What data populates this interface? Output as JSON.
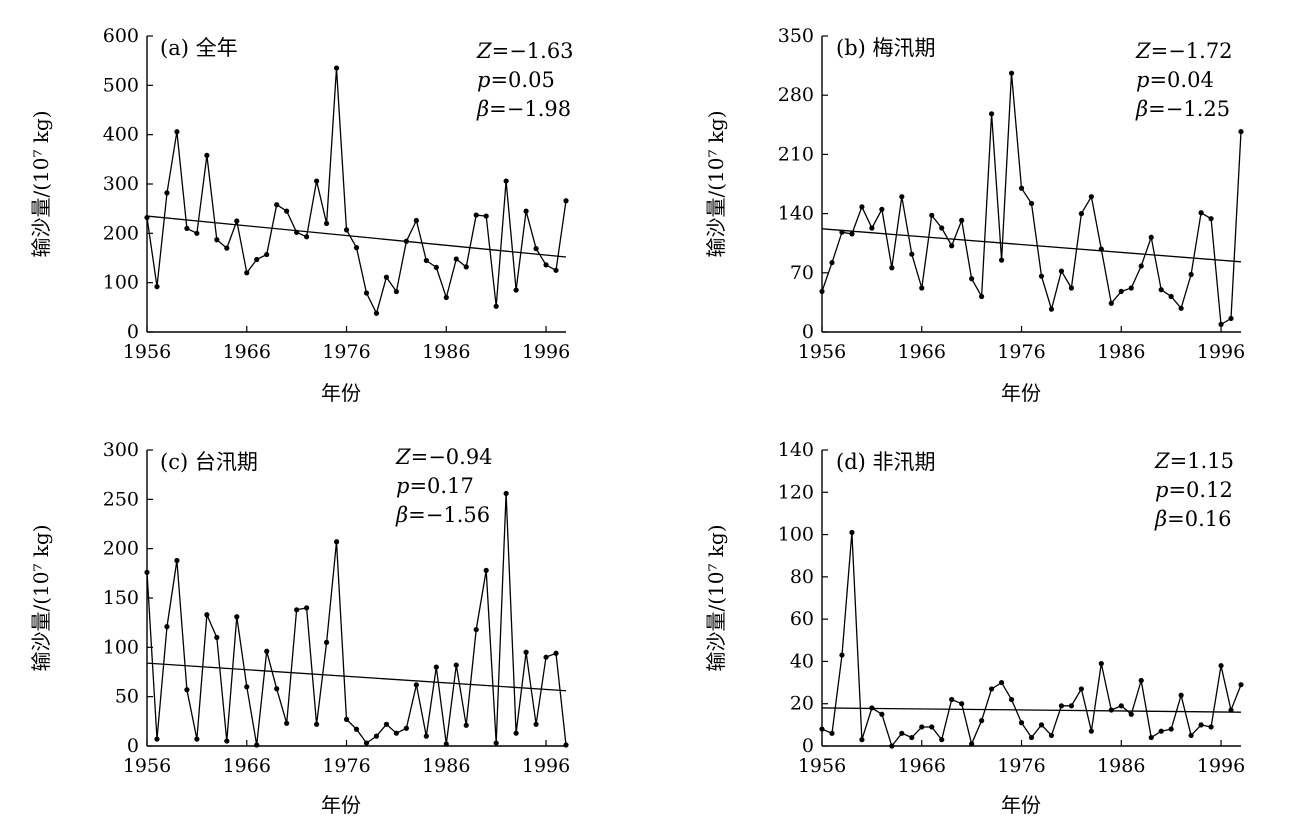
{
  "chart_data": [
    {
      "type": "line",
      "panel_label": "(a) 全年",
      "xlabel": "年份",
      "ylabel": "输沙量/(10⁷ kg)",
      "xlim": [
        1956,
        1998
      ],
      "xticks": [
        1956,
        1966,
        1976,
        1986,
        1996
      ],
      "ylim": [
        0,
        600
      ],
      "yticks": [
        0,
        100,
        200,
        300,
        400,
        500,
        600
      ],
      "stats": {
        "Z": "−1.63",
        "p": "0.05",
        "beta": "−1.98"
      },
      "series": [
        {
          "x": [
            1956,
            1957,
            1958,
            1959,
            1960,
            1961,
            1962,
            1963,
            1964,
            1965,
            1966,
            1967,
            1968,
            1969,
            1970,
            1971,
            1972,
            1973,
            1974,
            1975,
            1976,
            1977,
            1978,
            1979,
            1980,
            1981,
            1982,
            1983,
            1984,
            1985,
            1986,
            1987,
            1988,
            1989,
            1990,
            1991,
            1992,
            1993,
            1994,
            1995,
            1996,
            1997,
            1998
          ],
          "values": [
            232,
            92,
            282,
            406,
            210,
            200,
            358,
            187,
            170,
            225,
            120,
            147,
            157,
            258,
            245,
            202,
            193,
            306,
            220,
            535,
            207,
            171,
            79,
            38,
            111,
            82,
            184,
            226,
            145,
            131,
            70,
            148,
            132,
            237,
            235,
            52,
            306,
            85,
            245,
            169,
            136,
            125,
            266
          ]
        }
      ],
      "trend": {
        "x": [
          1956,
          1998
        ],
        "y": [
          235,
          152
        ]
      }
    },
    {
      "type": "line",
      "panel_label": "(b) 梅汛期",
      "xlabel": "年份",
      "ylabel": "输沙量/(10⁷ kg)",
      "xlim": [
        1956,
        1998
      ],
      "xticks": [
        1956,
        1966,
        1976,
        1986,
        1996
      ],
      "ylim": [
        0,
        350
      ],
      "yticks": [
        0,
        70,
        140,
        210,
        280,
        350
      ],
      "stats": {
        "Z": "−1.72",
        "p": "0.04",
        "beta": "−1.25"
      },
      "series": [
        {
          "x": [
            1956,
            1957,
            1958,
            1959,
            1960,
            1961,
            1962,
            1963,
            1964,
            1965,
            1966,
            1967,
            1968,
            1969,
            1970,
            1971,
            1972,
            1973,
            1974,
            1975,
            1976,
            1977,
            1978,
            1979,
            1980,
            1981,
            1982,
            1983,
            1984,
            1985,
            1986,
            1987,
            1988,
            1989,
            1990,
            1991,
            1992,
            1993,
            1994,
            1995,
            1996,
            1997,
            1998
          ],
          "values": [
            48,
            82,
            118,
            116,
            148,
            123,
            145,
            76,
            160,
            92,
            52,
            138,
            123,
            102,
            132,
            63,
            42,
            258,
            85,
            306,
            170,
            152,
            66,
            27,
            72,
            52,
            140,
            160,
            98,
            34,
            48,
            52,
            78,
            112,
            50,
            42,
            28,
            68,
            141,
            134,
            9,
            16,
            237
          ]
        }
      ],
      "trend": {
        "x": [
          1956,
          1998
        ],
        "y": [
          122,
          83
        ]
      }
    },
    {
      "type": "line",
      "panel_label": "(c) 台汛期",
      "xlabel": "年份",
      "ylabel": "输沙量/(10⁷ kg)",
      "xlim": [
        1956,
        1998
      ],
      "xticks": [
        1956,
        1966,
        1976,
        1986,
        1996
      ],
      "ylim": [
        0,
        300
      ],
      "yticks": [
        0,
        50,
        100,
        150,
        200,
        250,
        300
      ],
      "stats": {
        "Z": "−0.94",
        "p": "0.17",
        "beta": "−1.56"
      },
      "series": [
        {
          "x": [
            1956,
            1957,
            1958,
            1959,
            1960,
            1961,
            1962,
            1963,
            1964,
            1965,
            1966,
            1967,
            1968,
            1969,
            1970,
            1971,
            1972,
            1973,
            1974,
            1975,
            1976,
            1977,
            1978,
            1979,
            1980,
            1981,
            1982,
            1983,
            1984,
            1985,
            1986,
            1987,
            1988,
            1989,
            1990,
            1991,
            1992,
            1993,
            1994,
            1995,
            1996,
            1997,
            1998
          ],
          "values": [
            176,
            7,
            121,
            188,
            57,
            7,
            133,
            110,
            5,
            131,
            60,
            1,
            96,
            58,
            23,
            138,
            140,
            22,
            105,
            207,
            27,
            17,
            3,
            10,
            22,
            13,
            18,
            62,
            10,
            80,
            2,
            82,
            21,
            118,
            178,
            3,
            256,
            13,
            95,
            22,
            90,
            94,
            1
          ]
        }
      ],
      "trend": {
        "x": [
          1956,
          1998
        ],
        "y": [
          84,
          56
        ]
      }
    },
    {
      "type": "line",
      "panel_label": "(d) 非汛期",
      "xlabel": "年份",
      "ylabel": "输沙量/(10⁷ kg)",
      "xlim": [
        1956,
        1998
      ],
      "xticks": [
        1956,
        1966,
        1976,
        1986,
        1996
      ],
      "ylim": [
        0,
        140
      ],
      "yticks": [
        0,
        20,
        40,
        60,
        80,
        100,
        120,
        140
      ],
      "stats": {
        "Z": "1.15",
        "p": "0.12",
        "beta": "0.16"
      },
      "series": [
        {
          "x": [
            1956,
            1957,
            1958,
            1959,
            1960,
            1961,
            1962,
            1963,
            1964,
            1965,
            1966,
            1967,
            1968,
            1969,
            1970,
            1971,
            1972,
            1973,
            1974,
            1975,
            1976,
            1977,
            1978,
            1979,
            1980,
            1981,
            1982,
            1983,
            1984,
            1985,
            1986,
            1987,
            1988,
            1989,
            1990,
            1991,
            1992,
            1993,
            1994,
            1995,
            1996,
            1997,
            1998
          ],
          "values": [
            8,
            6,
            43,
            101,
            3,
            18,
            15,
            0,
            6,
            4,
            9,
            9,
            3,
            22,
            20,
            1,
            12,
            27,
            30,
            22,
            11,
            4,
            10,
            5,
            19,
            19,
            27,
            7,
            39,
            17,
            19,
            15,
            31,
            4,
            7,
            8,
            24,
            5,
            10,
            9,
            38,
            17,
            29
          ]
        }
      ],
      "trend": {
        "x": [
          1956,
          1998
        ],
        "y": [
          18,
          16
        ]
      }
    }
  ]
}
